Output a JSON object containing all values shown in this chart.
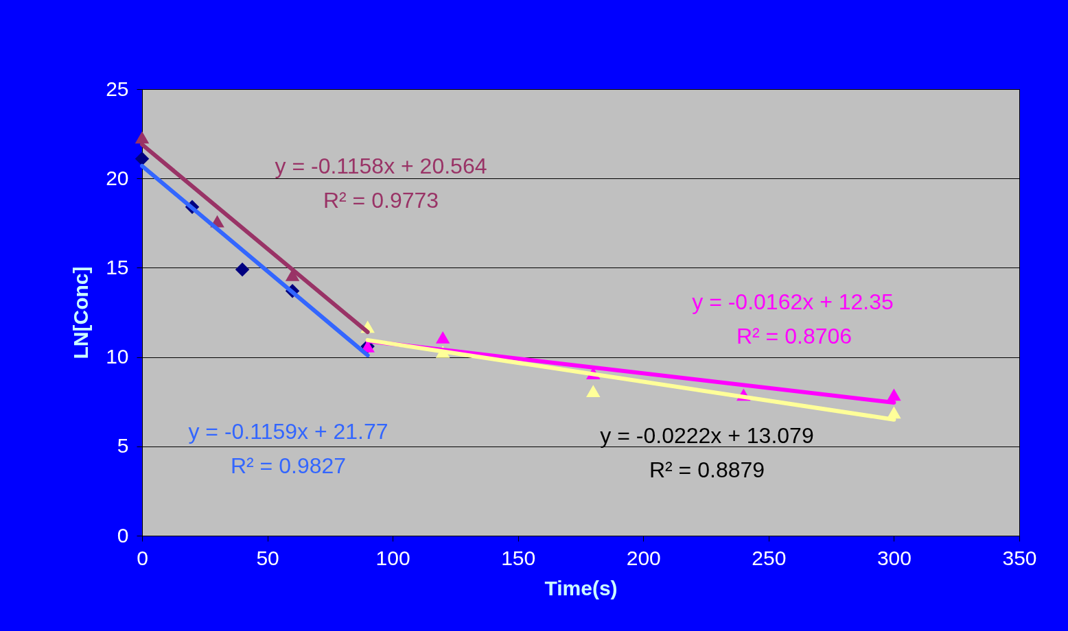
{
  "chart_data": {
    "type": "scatter",
    "xlabel": "Time(s)",
    "ylabel": "LN[Conc]",
    "xlim": [
      0,
      350
    ],
    "xticks": [
      0,
      50,
      100,
      150,
      200,
      250,
      300,
      350
    ],
    "ylim": [
      0,
      25
    ],
    "yticks": [
      0,
      5,
      10,
      15,
      20,
      25
    ],
    "grid": "y",
    "legend": false,
    "series": [
      {
        "marker": "diamond",
        "color": "#000080",
        "x": [
          0,
          20,
          40,
          60,
          90
        ],
        "values": [
          21.1,
          18.4,
          14.9,
          13.7,
          10.6
        ]
      },
      {
        "marker": "triangle",
        "color": "#993366",
        "x": [
          0,
          30,
          60
        ],
        "values": [
          22.3,
          17.6,
          14.6
        ]
      },
      {
        "marker": "triangle",
        "color": "#ffff99",
        "x": [
          90,
          120,
          180,
          300
        ],
        "values": [
          11.7,
          10.3,
          8.1,
          6.9
        ]
      },
      {
        "marker": "triangle",
        "color": "#ff00ff",
        "x": [
          90,
          120,
          180,
          240,
          300
        ],
        "values": [
          10.6,
          11.1,
          9.1,
          7.9,
          7.9
        ]
      },
      {
        "type": "line",
        "color": "#993366",
        "x": [
          0,
          90
        ],
        "values": [
          21.9,
          11.4
        ]
      },
      {
        "type": "line",
        "color": "#ff00ff",
        "x": [
          90,
          300
        ],
        "values": [
          10.9,
          7.45
        ]
      },
      {
        "type": "line",
        "color": "#3366ff",
        "x": [
          0,
          90
        ],
        "values": [
          20.7,
          10.1
        ]
      },
      {
        "type": "line",
        "color": "#ffff99",
        "x": [
          90,
          300
        ],
        "values": [
          10.95,
          6.5
        ]
      }
    ],
    "annotations": [
      "y = -0.1158x + 20.564",
      "R² = 0.9773",
      "y = -0.0162x + 12.35",
      "R² = 0.8706",
      "y = -0.1159x + 21.77",
      "R² = 0.9827",
      "y = -0.0222x + 13.079",
      "R² = 0.8879"
    ]
  }
}
